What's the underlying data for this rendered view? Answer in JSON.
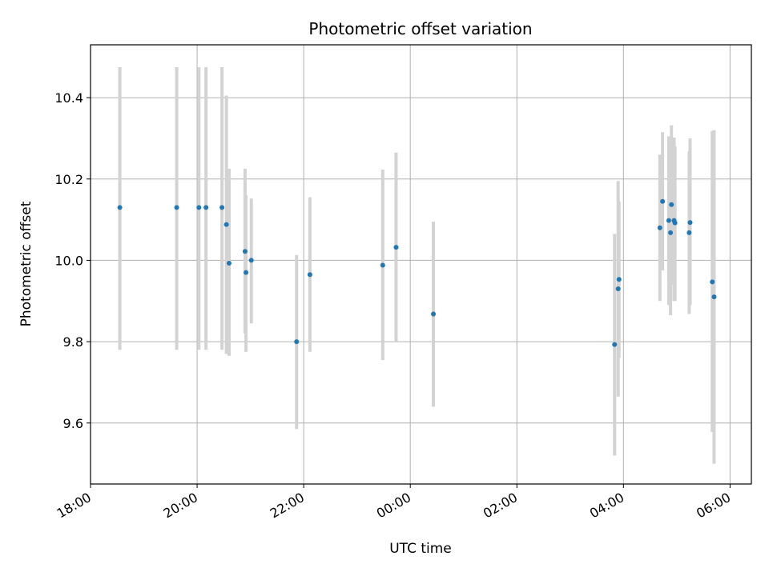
{
  "chart_data": {
    "type": "scatter",
    "title": "Photometric offset variation",
    "xlabel": "UTC time",
    "ylabel": "Photometric offset",
    "x_axis_kind": "time",
    "x_start": "18:00",
    "x_range_hours": [
      0,
      12.4
    ],
    "xtick_hours": [
      0,
      2,
      4,
      6,
      8,
      10,
      12
    ],
    "xtick_labels": [
      "18:00",
      "20:00",
      "22:00",
      "00:00",
      "02:00",
      "04:00",
      "06:00"
    ],
    "ylim": [
      9.45,
      10.53
    ],
    "yticks": [
      9.6,
      9.8,
      10.0,
      10.2,
      10.4
    ],
    "ytick_labels": [
      "9.6",
      "9.8",
      "10.0",
      "10.2",
      "10.4"
    ],
    "grid": true,
    "marker_color": "#1f77b4",
    "errorbar_color": "#d3d3d3",
    "points": [
      {
        "time": "18:33",
        "y": 10.13,
        "ylow": 9.78,
        "yhigh": 10.475
      },
      {
        "time": "19:37",
        "y": 10.13,
        "ylow": 9.78,
        "yhigh": 10.475
      },
      {
        "time": "20:02",
        "y": 10.13,
        "ylow": 9.78,
        "yhigh": 10.475
      },
      {
        "time": "20:10",
        "y": 10.13,
        "ylow": 9.78,
        "yhigh": 10.475
      },
      {
        "time": "20:28",
        "y": 10.13,
        "ylow": 9.78,
        "yhigh": 10.475
      },
      {
        "time": "20:33",
        "y": 10.088,
        "ylow": 9.77,
        "yhigh": 10.405
      },
      {
        "time": "20:36",
        "y": 9.993,
        "ylow": 9.765,
        "yhigh": 10.225
      },
      {
        "time": "20:54",
        "y": 10.022,
        "ylow": 9.82,
        "yhigh": 10.225
      },
      {
        "time": "20:55",
        "y": 9.97,
        "ylow": 9.775,
        "yhigh": 10.16
      },
      {
        "time": "21:01",
        "y": 10.0,
        "ylow": 9.845,
        "yhigh": 10.152
      },
      {
        "time": "21:52",
        "y": 9.8,
        "ylow": 9.585,
        "yhigh": 10.013
      },
      {
        "time": "22:07",
        "y": 9.965,
        "ylow": 9.775,
        "yhigh": 10.155
      },
      {
        "time": "23:29",
        "y": 9.988,
        "ylow": 9.755,
        "yhigh": 10.223
      },
      {
        "time": "23:44",
        "y": 10.032,
        "ylow": 9.8,
        "yhigh": 10.265
      },
      {
        "time": "00:26",
        "y": 9.868,
        "ylow": 9.64,
        "yhigh": 10.095
      },
      {
        "time": "03:50",
        "y": 9.793,
        "ylow": 9.52,
        "yhigh": 10.065
      },
      {
        "time": "03:54",
        "y": 9.93,
        "ylow": 9.665,
        "yhigh": 10.195
      },
      {
        "time": "03:55",
        "y": 9.953,
        "ylow": 9.76,
        "yhigh": 10.145
      },
      {
        "time": "04:41",
        "y": 10.08,
        "ylow": 9.9,
        "yhigh": 10.26
      },
      {
        "time": "04:44",
        "y": 10.145,
        "ylow": 9.975,
        "yhigh": 10.315
      },
      {
        "time": "04:51",
        "y": 10.098,
        "ylow": 9.89,
        "yhigh": 10.305
      },
      {
        "time": "04:53",
        "y": 10.068,
        "ylow": 9.865,
        "yhigh": 10.27
      },
      {
        "time": "04:54",
        "y": 10.137,
        "ylow": 9.94,
        "yhigh": 10.332
      },
      {
        "time": "04:57",
        "y": 10.098,
        "ylow": 9.9,
        "yhigh": 10.302
      },
      {
        "time": "04:58",
        "y": 10.092,
        "ylow": 9.9,
        "yhigh": 10.28
      },
      {
        "time": "05:14",
        "y": 10.068,
        "ylow": 9.868,
        "yhigh": 10.268
      },
      {
        "time": "05:15",
        "y": 10.093,
        "ylow": 9.89,
        "yhigh": 10.3
      },
      {
        "time": "05:40",
        "y": 9.947,
        "ylow": 9.578,
        "yhigh": 10.318
      },
      {
        "time": "05:42",
        "y": 9.91,
        "ylow": 9.5,
        "yhigh": 10.32
      }
    ]
  }
}
